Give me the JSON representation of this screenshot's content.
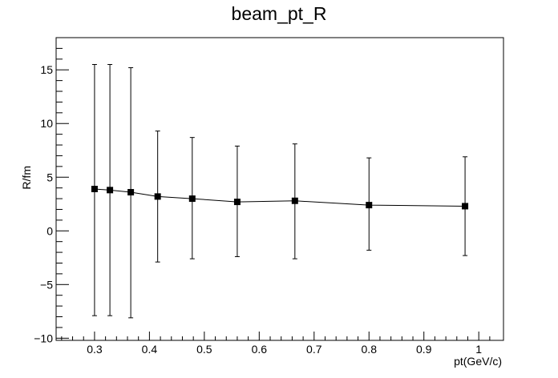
{
  "chart_data": {
    "type": "scatter",
    "title": "beam_pt_R",
    "xlabel": "pt(GeV/c)",
    "ylabel": "R/fm",
    "xlim": [
      0.23,
      1.045
    ],
    "ylim": [
      -10.2,
      18.0
    ],
    "x_ticks": [
      0.3,
      0.4,
      0.5,
      0.6,
      0.7,
      0.8,
      0.9,
      1
    ],
    "x_tick_labels": [
      "0.3",
      "0.4",
      "0.5",
      "0.6",
      "0.7",
      "0.8",
      "0.9",
      "1"
    ],
    "y_ticks": [
      -10,
      -5,
      0,
      5,
      10,
      15
    ],
    "y_tick_labels": [
      "−10",
      "−5",
      "0",
      "5",
      "10",
      "15"
    ],
    "grid": false,
    "legend": "none",
    "marker": "filled-square",
    "line": true,
    "series": [
      {
        "x": [
          0.3,
          0.328,
          0.366,
          0.415,
          0.478,
          0.56,
          0.665,
          0.8,
          0.975
        ],
        "y": [
          3.9,
          3.8,
          3.6,
          3.2,
          3.0,
          2.7,
          2.8,
          2.4,
          2.3
        ],
        "y_err_low": [
          11.8,
          11.7,
          11.7,
          6.1,
          5.6,
          5.1,
          5.4,
          4.2,
          4.6
        ],
        "y_err_high": [
          11.6,
          11.7,
          11.6,
          6.1,
          5.7,
          5.2,
          5.3,
          4.4,
          4.6
        ]
      }
    ]
  }
}
